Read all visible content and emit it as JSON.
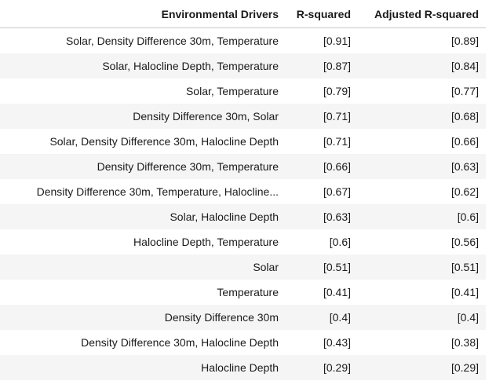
{
  "table": {
    "headers": {
      "drivers": "Environmental Drivers",
      "r_squared": "R-squared",
      "adjusted_r_squared": "Adjusted R-squared"
    },
    "rows": [
      {
        "drivers": "Solar, Density Difference 30m, Temperature",
        "r_squared": "[0.91]",
        "adjusted_r_squared": "[0.89]"
      },
      {
        "drivers": "Solar, Halocline Depth, Temperature",
        "r_squared": "[0.87]",
        "adjusted_r_squared": "[0.84]"
      },
      {
        "drivers": "Solar, Temperature",
        "r_squared": "[0.79]",
        "adjusted_r_squared": "[0.77]"
      },
      {
        "drivers": "Density Difference 30m, Solar",
        "r_squared": "[0.71]",
        "adjusted_r_squared": "[0.68]"
      },
      {
        "drivers": "Solar, Density Difference 30m, Halocline Depth",
        "r_squared": "[0.71]",
        "adjusted_r_squared": "[0.66]"
      },
      {
        "drivers": "Density Difference 30m, Temperature",
        "r_squared": "[0.66]",
        "adjusted_r_squared": "[0.63]"
      },
      {
        "drivers": "Density Difference 30m, Temperature, Halocline...",
        "r_squared": "[0.67]",
        "adjusted_r_squared": "[0.62]"
      },
      {
        "drivers": "Solar, Halocline Depth",
        "r_squared": "[0.63]",
        "adjusted_r_squared": "[0.6]"
      },
      {
        "drivers": "Halocline Depth, Temperature",
        "r_squared": "[0.6]",
        "adjusted_r_squared": "[0.56]"
      },
      {
        "drivers": "Solar",
        "r_squared": "[0.51]",
        "adjusted_r_squared": "[0.51]"
      },
      {
        "drivers": "Temperature",
        "r_squared": "[0.41]",
        "adjusted_r_squared": "[0.41]"
      },
      {
        "drivers": "Density Difference 30m",
        "r_squared": "[0.4]",
        "adjusted_r_squared": "[0.4]"
      },
      {
        "drivers": "Density Difference 30m, Halocline Depth",
        "r_squared": "[0.43]",
        "adjusted_r_squared": "[0.38]"
      },
      {
        "drivers": "Halocline Depth",
        "r_squared": "[0.29]",
        "adjusted_r_squared": "[0.29]"
      }
    ]
  }
}
